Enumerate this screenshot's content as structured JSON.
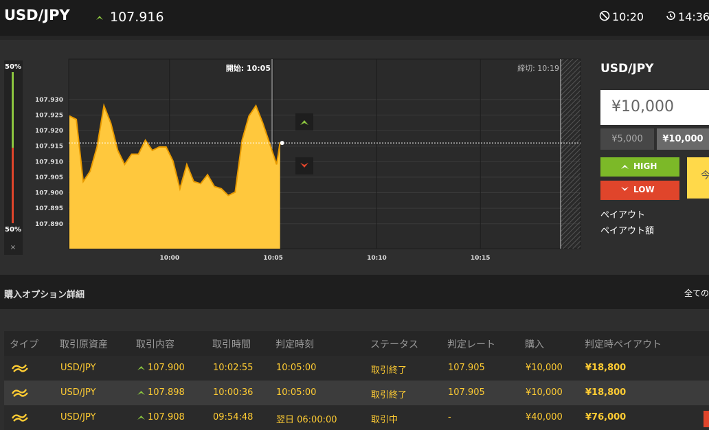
{
  "header": {
    "symbol": "USD/JPY",
    "price": 107.916,
    "clock": "10:20",
    "remaining": "14:36"
  },
  "gauge": {
    "high": {
      "value": 50,
      "label": "50%"
    },
    "low": {
      "value": 50,
      "label": "50%"
    },
    "close": "×"
  },
  "chart": {
    "type": "area",
    "color": "#ffc83d",
    "line_color": "#e89a00",
    "x": [
      "09:55:10",
      "09:55:30",
      "09:55:50",
      "09:56:10",
      "09:56:30",
      "09:56:50",
      "09:57:10",
      "09:57:30",
      "09:57:50",
      "09:58:10",
      "09:58:30",
      "09:58:50",
      "09:59:10",
      "09:59:30",
      "09:59:50",
      "10:00:10",
      "10:00:30",
      "10:00:50",
      "10:01:10",
      "10:01:30",
      "10:01:50",
      "10:02:10",
      "10:02:30",
      "10:02:50",
      "10:03:10",
      "10:03:30",
      "10:03:50",
      "10:04:10",
      "10:04:30",
      "10:04:50",
      "10:05:10",
      "10:05:20"
    ],
    "values": [
      107.9247,
      107.9236,
      107.9036,
      107.9069,
      107.9147,
      107.928,
      107.9224,
      107.9136,
      107.9091,
      107.9124,
      107.9124,
      107.9169,
      107.9136,
      107.9147,
      107.9147,
      107.9102,
      107.9013,
      107.9091,
      107.9036,
      107.9029,
      107.9058,
      107.902,
      107.9013,
      107.8991,
      107.9002,
      107.9169,
      107.9247,
      107.928,
      107.9224,
      107.9158,
      107.9091,
      107.9162
    ],
    "xlim": [
      "09:55:08",
      "10:19:50"
    ],
    "xticks": [
      "10:00",
      "10:05",
      "10:10",
      "10:15"
    ],
    "ylim": [
      107.882,
      107.943
    ],
    "yticks": [
      {
        "value": 107.93,
        "label": "107.930"
      },
      {
        "value": 107.925,
        "label": "107.925"
      },
      {
        "value": 107.92,
        "label": "107.920"
      },
      {
        "value": 107.915,
        "label": "107.915"
      },
      {
        "value": 107.91,
        "label": "107.910"
      },
      {
        "value": 107.905,
        "label": "107.905"
      },
      {
        "value": 107.9,
        "label": "107.900"
      },
      {
        "value": 107.895,
        "label": "107.895"
      },
      {
        "value": 107.89,
        "label": "107.890"
      }
    ],
    "start_label": "開始: 10:05",
    "end_label": "締切: 10:19",
    "grid": true
  },
  "order": {
    "symbol": "USD/JPY",
    "amount": "¥10,000",
    "presets": [
      "¥5,000",
      "¥10,000"
    ],
    "high": "HIGH",
    "low": "LOW",
    "buy": "今",
    "payout": "ペイアウト",
    "payout_amount": "ペイアウト額"
  },
  "details": {
    "title": "購入オプション詳細",
    "all": "全ての"
  },
  "table": {
    "headers": [
      "タイプ",
      "取引原資産",
      "取引内容",
      "取引時間",
      "判定時刻",
      "ステータス",
      "判定レート",
      "購入",
      "判定時ペイアウト"
    ],
    "rows": [
      [
        "USD/JPY",
        "107.900",
        "10:02:55",
        "10:05:00",
        "取引終了",
        "107.905",
        "¥10,000",
        "¥18,800"
      ],
      [
        "USD/JPY",
        "107.898",
        "10:00:36",
        "10:05:00",
        "取引終了",
        "107.905",
        "¥10,000",
        "¥18,800"
      ],
      [
        "USD/JPY",
        "107.908",
        "09:54:48",
        "翌日 06:00:00",
        "取引中",
        "-",
        "¥40,000",
        "¥76,000"
      ]
    ]
  }
}
